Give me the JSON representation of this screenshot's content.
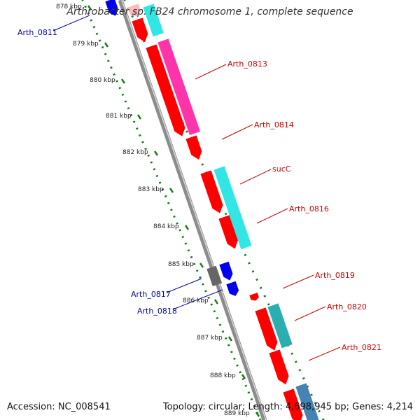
{
  "title": "Arthrobacter sp. FB24 chromosome 1, complete sequence",
  "accession": "Accession: NC_008541",
  "summary": "Topology: circular; Length: 4,698,945 bp; Genes: 4,214",
  "colors": {
    "backbone": "#8c8c8c",
    "tick": "#1a7a1a",
    "forward_cds": "#ff0000",
    "forward_label": "#cc0000",
    "reverse_cds": "#0000ee",
    "reverse_label": "#0000aa",
    "cog_cyan": "#33e6e6",
    "cog_magenta": "#ff33aa",
    "cog_teal": "#2aaeb0",
    "cog_steel": "#4682b4",
    "gray_gene": "#666666"
  },
  "ruler": [
    {
      "label": "878 kbp",
      "kbp": 878
    },
    {
      "label": "879 kbp",
      "kbp": 879
    },
    {
      "label": "880 kbp",
      "kbp": 880
    },
    {
      "label": "881 kbp",
      "kbp": 881
    },
    {
      "label": "882 kbp",
      "kbp": 882
    },
    {
      "label": "883 kbp",
      "kbp": 883
    },
    {
      "label": "884 kbp",
      "kbp": 884
    },
    {
      "label": "885 kbp",
      "kbp": 885
    },
    {
      "label": "886 kbp",
      "kbp": 886
    },
    {
      "label": "887 kbp",
      "kbp": 887
    },
    {
      "label": "888 kbp",
      "kbp": 888
    },
    {
      "label": "889 kbp",
      "kbp": 889
    }
  ],
  "gene_labels": [
    {
      "name": "Arth_0811",
      "strand": "reverse"
    },
    {
      "name": "Arth_0813",
      "strand": "forward"
    },
    {
      "name": "Arth_0814",
      "strand": "forward"
    },
    {
      "name": "sucC",
      "strand": "forward"
    },
    {
      "name": "Arth_0816",
      "strand": "forward"
    },
    {
      "name": "Arth_0817",
      "strand": "reverse"
    },
    {
      "name": "Arth_0818",
      "strand": "reverse"
    },
    {
      "name": "Arth_0819",
      "strand": "forward"
    },
    {
      "name": "Arth_0820",
      "strand": "forward"
    },
    {
      "name": "Arth_0821",
      "strand": "forward"
    }
  ]
}
